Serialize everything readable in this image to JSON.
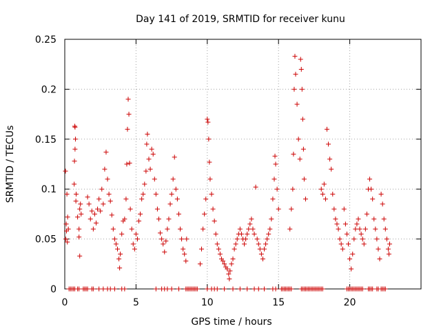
{
  "chart_data": {
    "type": "scatter",
    "title": "Day 141 of 2019, SRMTID for receiver kunu",
    "xlabel": "GPS time / hours",
    "ylabel": "SRMTID / TECUs",
    "xlim": [
      0,
      25
    ],
    "ylim": [
      0,
      0.25
    ],
    "xticks": [
      0,
      5,
      10,
      15,
      20
    ],
    "xtick_labels": [
      "0",
      "5",
      "10",
      "15",
      "20"
    ],
    "yticks": [
      0,
      0.05,
      0.1,
      0.15,
      0.2,
      0.25
    ],
    "ytick_labels": [
      "0",
      "0.05",
      "0.1",
      "0.15",
      "0.2",
      "0.25"
    ],
    "grid": true,
    "marker": "plus",
    "color": "#cc0000",
    "series": [
      {
        "name": "SRMTID",
        "points": [
          [
            0.05,
            0.118
          ],
          [
            0.07,
            0.05
          ],
          [
            0.1,
            0.065
          ],
          [
            0.12,
            0.058
          ],
          [
            0.15,
            0.095
          ],
          [
            0.18,
            0.047
          ],
          [
            0.2,
            0.072
          ],
          [
            0.25,
            0.06
          ],
          [
            0.7,
            0.163
          ],
          [
            0.72,
            0.162
          ],
          [
            0.75,
            0.15
          ],
          [
            0.72,
            0.14
          ],
          [
            0.68,
            0.128
          ],
          [
            0.66,
            0.105
          ],
          [
            0.8,
            0.095
          ],
          [
            0.78,
            0.088
          ],
          [
            0.9,
            0.072
          ],
          [
            1.0,
            0.06
          ],
          [
            1.05,
            0.08
          ],
          [
            1.1,
            0.085
          ],
          [
            1.0,
            0.052
          ],
          [
            1.15,
            0.075
          ],
          [
            1.05,
            0.033
          ],
          [
            1.6,
            0.092
          ],
          [
            1.7,
            0.085
          ],
          [
            1.8,
            0.07
          ],
          [
            1.9,
            0.078
          ],
          [
            2.0,
            0.06
          ],
          [
            2.1,
            0.075
          ],
          [
            2.2,
            0.066
          ],
          [
            2.3,
            0.08
          ],
          [
            2.4,
            0.09
          ],
          [
            2.5,
            0.078
          ],
          [
            2.6,
            0.1
          ],
          [
            2.7,
            0.085
          ],
          [
            2.8,
            0.12
          ],
          [
            2.9,
            0.137
          ],
          [
            3.0,
            0.11
          ],
          [
            3.1,
            0.095
          ],
          [
            3.2,
            0.088
          ],
          [
            3.3,
            0.074
          ],
          [
            3.4,
            0.06
          ],
          [
            3.5,
            0.05
          ],
          [
            3.6,
            0.045
          ],
          [
            3.7,
            0.04
          ],
          [
            3.8,
            0.03
          ],
          [
            3.85,
            0.021
          ],
          [
            3.9,
            0.035
          ],
          [
            4.0,
            0.055
          ],
          [
            4.1,
            0.068
          ],
          [
            4.2,
            0.07
          ],
          [
            4.3,
            0.09
          ],
          [
            4.35,
            0.125
          ],
          [
            4.4,
            0.16
          ],
          [
            4.45,
            0.19
          ],
          [
            4.5,
            0.175
          ],
          [
            4.55,
            0.126
          ],
          [
            4.6,
            0.08
          ],
          [
            4.7,
            0.06
          ],
          [
            4.8,
            0.045
          ],
          [
            4.9,
            0.04
          ],
          [
            5.0,
            0.055
          ],
          [
            5.1,
            0.05
          ],
          [
            5.2,
            0.068
          ],
          [
            5.3,
            0.075
          ],
          [
            5.4,
            0.09
          ],
          [
            5.5,
            0.095
          ],
          [
            5.6,
            0.105
          ],
          [
            5.7,
            0.118
          ],
          [
            5.75,
            0.145
          ],
          [
            5.8,
            0.155
          ],
          [
            5.9,
            0.13
          ],
          [
            6.0,
            0.12
          ],
          [
            6.1,
            0.14
          ],
          [
            6.2,
            0.135
          ],
          [
            6.3,
            0.11
          ],
          [
            6.4,
            0.095
          ],
          [
            6.5,
            0.08
          ],
          [
            6.6,
            0.07
          ],
          [
            6.7,
            0.056
          ],
          [
            6.8,
            0.05
          ],
          [
            6.9,
            0.045
          ],
          [
            7.0,
            0.037
          ],
          [
            7.1,
            0.048
          ],
          [
            7.2,
            0.06
          ],
          [
            7.3,
            0.07
          ],
          [
            7.4,
            0.085
          ],
          [
            7.5,
            0.095
          ],
          [
            7.6,
            0.11
          ],
          [
            7.7,
            0.132
          ],
          [
            7.8,
            0.1
          ],
          [
            7.9,
            0.09
          ],
          [
            8.0,
            0.075
          ],
          [
            8.1,
            0.06
          ],
          [
            8.2,
            0.05
          ],
          [
            8.3,
            0.04
          ],
          [
            8.4,
            0.035
          ],
          [
            8.5,
            0.028
          ],
          [
            8.55,
            0.05
          ],
          [
            9.5,
            0.025
          ],
          [
            9.6,
            0.04
          ],
          [
            9.7,
            0.06
          ],
          [
            9.8,
            0.075
          ],
          [
            9.9,
            0.09
          ],
          [
            10.0,
            0.17
          ],
          [
            10.05,
            0.167
          ],
          [
            10.1,
            0.15
          ],
          [
            10.15,
            0.127
          ],
          [
            10.2,
            0.11
          ],
          [
            10.3,
            0.095
          ],
          [
            10.4,
            0.08
          ],
          [
            10.5,
            0.068
          ],
          [
            10.6,
            0.055
          ],
          [
            10.7,
            0.045
          ],
          [
            10.8,
            0.04
          ],
          [
            10.9,
            0.035
          ],
          [
            11.0,
            0.03
          ],
          [
            11.1,
            0.028
          ],
          [
            11.2,
            0.025
          ],
          [
            11.3,
            0.022
          ],
          [
            11.4,
            0.02
          ],
          [
            11.5,
            0.015
          ],
          [
            11.55,
            0.01
          ],
          [
            11.6,
            0.018
          ],
          [
            11.7,
            0.025
          ],
          [
            11.8,
            0.03
          ],
          [
            11.9,
            0.04
          ],
          [
            12.0,
            0.045
          ],
          [
            12.1,
            0.05
          ],
          [
            12.2,
            0.055
          ],
          [
            12.3,
            0.06
          ],
          [
            12.4,
            0.055
          ],
          [
            12.5,
            0.05
          ],
          [
            12.6,
            0.045
          ],
          [
            12.7,
            0.05
          ],
          [
            12.8,
            0.055
          ],
          [
            12.9,
            0.06
          ],
          [
            13.0,
            0.065
          ],
          [
            13.1,
            0.07
          ],
          [
            13.2,
            0.06
          ],
          [
            13.3,
            0.055
          ],
          [
            13.4,
            0.102
          ],
          [
            13.5,
            0.05
          ],
          [
            13.6,
            0.045
          ],
          [
            13.7,
            0.04
          ],
          [
            13.8,
            0.035
          ],
          [
            13.9,
            0.03
          ],
          [
            14.0,
            0.04
          ],
          [
            14.1,
            0.045
          ],
          [
            14.2,
            0.05
          ],
          [
            14.3,
            0.055
          ],
          [
            14.4,
            0.06
          ],
          [
            14.5,
            0.07
          ],
          [
            14.6,
            0.09
          ],
          [
            14.7,
            0.11
          ],
          [
            14.75,
            0.133
          ],
          [
            14.8,
            0.125
          ],
          [
            14.9,
            0.1
          ],
          [
            15.0,
            0.08
          ],
          [
            15.8,
            0.06
          ],
          [
            15.9,
            0.08
          ],
          [
            16.0,
            0.1
          ],
          [
            16.05,
            0.135
          ],
          [
            16.1,
            0.2
          ],
          [
            16.15,
            0.233
          ],
          [
            16.2,
            0.215
          ],
          [
            16.3,
            0.185
          ],
          [
            16.4,
            0.15
          ],
          [
            16.5,
            0.13
          ],
          [
            16.55,
            0.23
          ],
          [
            16.6,
            0.22
          ],
          [
            16.65,
            0.2
          ],
          [
            16.7,
            0.17
          ],
          [
            16.75,
            0.14
          ],
          [
            16.8,
            0.11
          ],
          [
            16.9,
            0.09
          ],
          [
            18.0,
            0.1
          ],
          [
            18.1,
            0.095
          ],
          [
            18.2,
            0.105
          ],
          [
            18.3,
            0.09
          ],
          [
            18.4,
            0.16
          ],
          [
            18.5,
            0.145
          ],
          [
            18.6,
            0.13
          ],
          [
            18.7,
            0.12
          ],
          [
            18.8,
            0.095
          ],
          [
            18.9,
            0.08
          ],
          [
            19.0,
            0.07
          ],
          [
            19.1,
            0.065
          ],
          [
            19.2,
            0.06
          ],
          [
            19.3,
            0.05
          ],
          [
            19.4,
            0.045
          ],
          [
            19.5,
            0.04
          ],
          [
            19.6,
            0.08
          ],
          [
            19.7,
            0.065
          ],
          [
            19.8,
            0.055
          ],
          [
            19.9,
            0.045
          ],
          [
            20.0,
            0.03
          ],
          [
            20.1,
            0.02
          ],
          [
            20.2,
            0.035
          ],
          [
            20.3,
            0.05
          ],
          [
            20.4,
            0.06
          ],
          [
            20.5,
            0.065
          ],
          [
            20.6,
            0.07
          ],
          [
            20.7,
            0.06
          ],
          [
            20.8,
            0.055
          ],
          [
            20.9,
            0.05
          ],
          [
            21.0,
            0.045
          ],
          [
            21.1,
            0.06
          ],
          [
            21.2,
            0.075
          ],
          [
            21.3,
            0.1
          ],
          [
            21.4,
            0.11
          ],
          [
            21.5,
            0.1
          ],
          [
            21.6,
            0.09
          ],
          [
            21.7,
            0.07
          ],
          [
            21.8,
            0.06
          ],
          [
            21.9,
            0.05
          ],
          [
            22.0,
            0.04
          ],
          [
            22.1,
            0.03
          ],
          [
            22.2,
            0.095
          ],
          [
            22.3,
            0.085
          ],
          [
            22.4,
            0.07
          ],
          [
            22.5,
            0.06
          ],
          [
            22.6,
            0.05
          ],
          [
            22.7,
            0.04
          ],
          [
            22.75,
            0.035
          ],
          [
            22.8,
            0.045
          ],
          [
            0.3,
            0.0
          ],
          [
            0.4,
            0.0
          ],
          [
            0.5,
            0.0
          ],
          [
            0.6,
            0.0
          ],
          [
            0.7,
            0.0
          ],
          [
            0.9,
            0.0
          ],
          [
            1.0,
            0.0
          ],
          [
            1.3,
            0.0
          ],
          [
            1.4,
            0.0
          ],
          [
            1.5,
            0.0
          ],
          [
            1.6,
            0.0
          ],
          [
            1.9,
            0.0
          ],
          [
            2.0,
            0.0
          ],
          [
            2.4,
            0.0
          ],
          [
            2.7,
            0.0
          ],
          [
            3.0,
            0.0
          ],
          [
            3.2,
            0.0
          ],
          [
            3.5,
            0.0
          ],
          [
            4.0,
            0.0
          ],
          [
            4.2,
            0.0
          ],
          [
            6.4,
            0.0
          ],
          [
            6.8,
            0.0
          ],
          [
            7.0,
            0.0
          ],
          [
            7.2,
            0.0
          ],
          [
            7.5,
            0.0
          ],
          [
            8.0,
            0.0
          ],
          [
            8.5,
            0.0
          ],
          [
            8.6,
            0.0
          ],
          [
            8.7,
            0.0
          ],
          [
            8.8,
            0.0
          ],
          [
            8.9,
            0.0
          ],
          [
            9.0,
            0.0
          ],
          [
            9.1,
            0.0
          ],
          [
            9.2,
            0.0
          ],
          [
            9.3,
            0.0
          ],
          [
            10.0,
            0.0
          ],
          [
            10.3,
            0.0
          ],
          [
            10.5,
            0.0
          ],
          [
            10.7,
            0.0
          ],
          [
            11.2,
            0.0
          ],
          [
            11.8,
            0.0
          ],
          [
            12.3,
            0.0
          ],
          [
            12.8,
            0.0
          ],
          [
            13.3,
            0.0
          ],
          [
            13.6,
            0.0
          ],
          [
            14.0,
            0.0
          ],
          [
            14.6,
            0.0
          ],
          [
            14.8,
            0.0
          ],
          [
            15.2,
            0.0
          ],
          [
            15.3,
            0.0
          ],
          [
            15.4,
            0.0
          ],
          [
            15.5,
            0.0
          ],
          [
            15.6,
            0.0
          ],
          [
            15.7,
            0.0
          ],
          [
            15.8,
            0.0
          ],
          [
            15.9,
            0.0
          ],
          [
            16.6,
            0.0
          ],
          [
            16.7,
            0.0
          ],
          [
            16.8,
            0.0
          ],
          [
            16.9,
            0.0
          ],
          [
            17.0,
            0.0
          ],
          [
            17.1,
            0.0
          ],
          [
            17.2,
            0.0
          ],
          [
            17.3,
            0.0
          ],
          [
            17.4,
            0.0
          ],
          [
            17.5,
            0.0
          ],
          [
            17.6,
            0.0
          ],
          [
            17.7,
            0.0
          ],
          [
            17.8,
            0.0
          ],
          [
            17.9,
            0.0
          ],
          [
            18.0,
            0.0
          ],
          [
            18.1,
            0.0
          ],
          [
            19.8,
            0.0
          ],
          [
            19.9,
            0.0
          ],
          [
            20.0,
            0.0
          ],
          [
            20.1,
            0.0
          ],
          [
            20.2,
            0.0
          ],
          [
            20.3,
            0.0
          ],
          [
            20.4,
            0.0
          ],
          [
            20.5,
            0.0
          ],
          [
            20.6,
            0.0
          ],
          [
            20.7,
            0.0
          ],
          [
            20.8,
            0.0
          ],
          [
            20.9,
            0.0
          ],
          [
            21.3,
            0.0
          ],
          [
            21.4,
            0.0
          ],
          [
            21.5,
            0.0
          ],
          [
            21.6,
            0.0
          ],
          [
            21.9,
            0.0
          ],
          [
            22.0,
            0.0
          ],
          [
            22.2,
            0.0
          ],
          [
            22.3,
            0.0
          ],
          [
            22.4,
            0.0
          ],
          [
            22.5,
            0.0
          ]
        ]
      }
    ]
  }
}
